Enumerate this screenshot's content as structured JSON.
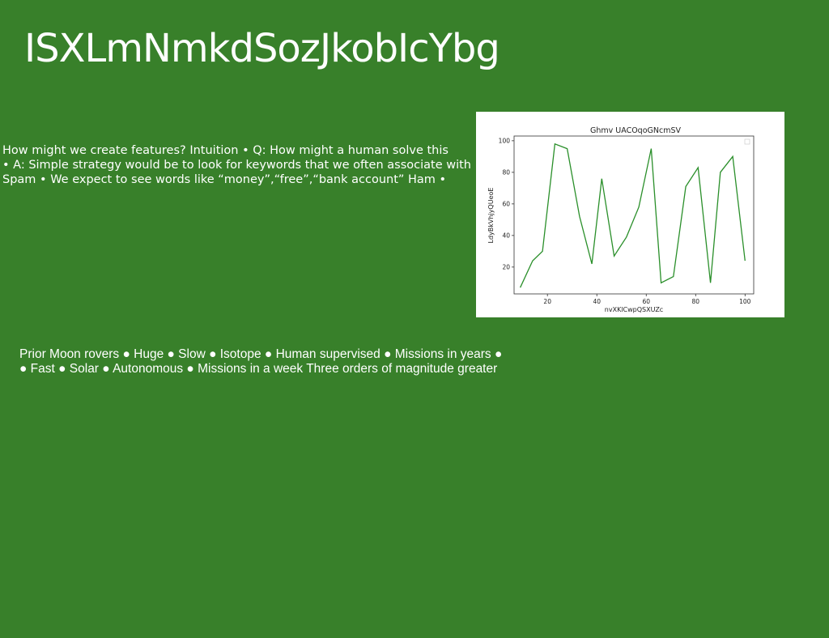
{
  "slide": {
    "title": "ISXLmNmkdSozJkobIcYbg",
    "body_lines": [
      "How might we create features? Intuition • Q: How might a human solve this",
      "• A: Simple strategy would be to look for keywords that we often associate with",
      "Spam • We expect to see words like “money”,“free”,“bank account” Ham •"
    ],
    "second_lines": [
      "Prior Moon rovers ● Huge ● Slow ● Isotope ● Human supervised ● Missions in years ●",
      "● Fast ● Solar ● Autonomous ● Missions in a week Three orders of magnitude greater"
    ]
  },
  "colors": {
    "background": "#38802a",
    "line": "#2a8f2a"
  },
  "chart_data": {
    "type": "line",
    "title": "Ghmv UACOqoGNcmSV",
    "xlabel": "nvXKlCwpQSXUZc",
    "ylabel": "LdyBkVhjyQUeoE",
    "xlim": [
      6.5,
      103.5
    ],
    "ylim": [
      3,
      103
    ],
    "xticks": [
      20,
      40,
      60,
      80,
      100
    ],
    "yticks": [
      20,
      40,
      60,
      80,
      100
    ],
    "grid": false,
    "legend": "top-right",
    "series": [
      {
        "x": [
          9,
          14,
          18,
          23,
          28,
          33,
          38,
          42,
          47,
          52,
          57,
          62,
          66,
          71,
          76,
          81,
          86,
          90,
          95,
          100
        ],
        "y": [
          7,
          24,
          30,
          98,
          95,
          52,
          22,
          76,
          27,
          39,
          58,
          95,
          10,
          14,
          71,
          83,
          10,
          80,
          90,
          24
        ]
      }
    ]
  }
}
